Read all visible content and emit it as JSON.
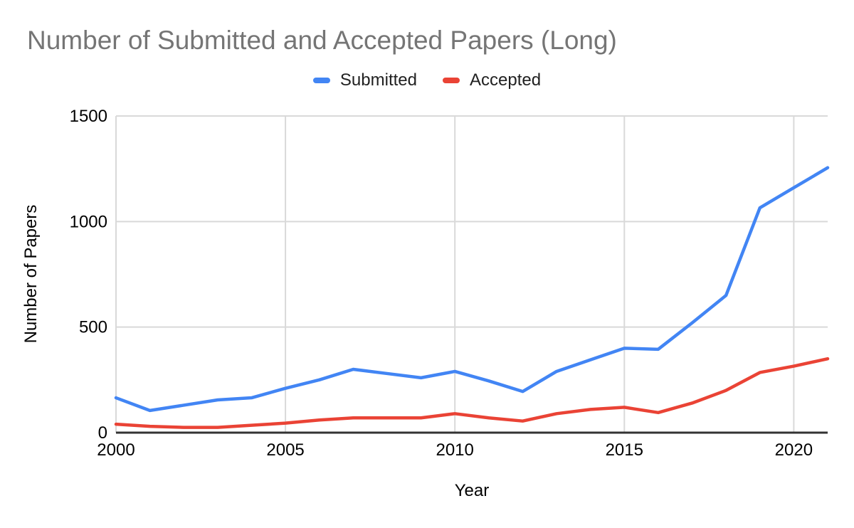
{
  "title": "Number of Submitted and Accepted Papers (Long)",
  "legend": [
    {
      "label": "Submitted",
      "color": "#4285f4"
    },
    {
      "label": "Accepted",
      "color": "#ea4335"
    }
  ],
  "colors": {
    "title_text": "#757575",
    "axis_text": "#000000",
    "grid": "#d9d9d9",
    "axis_line": "#333333",
    "background": "#ffffff"
  },
  "chart_data": {
    "type": "line",
    "title": "Number of Submitted and Accepted Papers (Long)",
    "xlabel": "Year",
    "ylabel": "Number of Papers",
    "x": [
      2000,
      2001,
      2002,
      2003,
      2004,
      2005,
      2006,
      2007,
      2008,
      2009,
      2010,
      2011,
      2012,
      2013,
      2014,
      2015,
      2016,
      2017,
      2018,
      2019,
      2020,
      2021
    ],
    "series": [
      {
        "name": "Submitted",
        "color": "#4285f4",
        "values": [
          165,
          105,
          130,
          155,
          165,
          210,
          250,
          300,
          280,
          260,
          290,
          245,
          195,
          290,
          345,
          400,
          395,
          520,
          650,
          1065,
          1160,
          1255
        ]
      },
      {
        "name": "Accepted",
        "color": "#ea4335",
        "values": [
          40,
          30,
          25,
          25,
          35,
          45,
          60,
          70,
          70,
          70,
          90,
          70,
          55,
          90,
          110,
          120,
          95,
          140,
          200,
          285,
          315,
          350
        ]
      }
    ],
    "xlim": [
      2000,
      2021
    ],
    "ylim": [
      0,
      1500
    ],
    "x_ticks": [
      2000,
      2005,
      2010,
      2015,
      2020
    ],
    "y_ticks": [
      0,
      500,
      1000,
      1500
    ],
    "grid": true,
    "legend_position": "top"
  }
}
